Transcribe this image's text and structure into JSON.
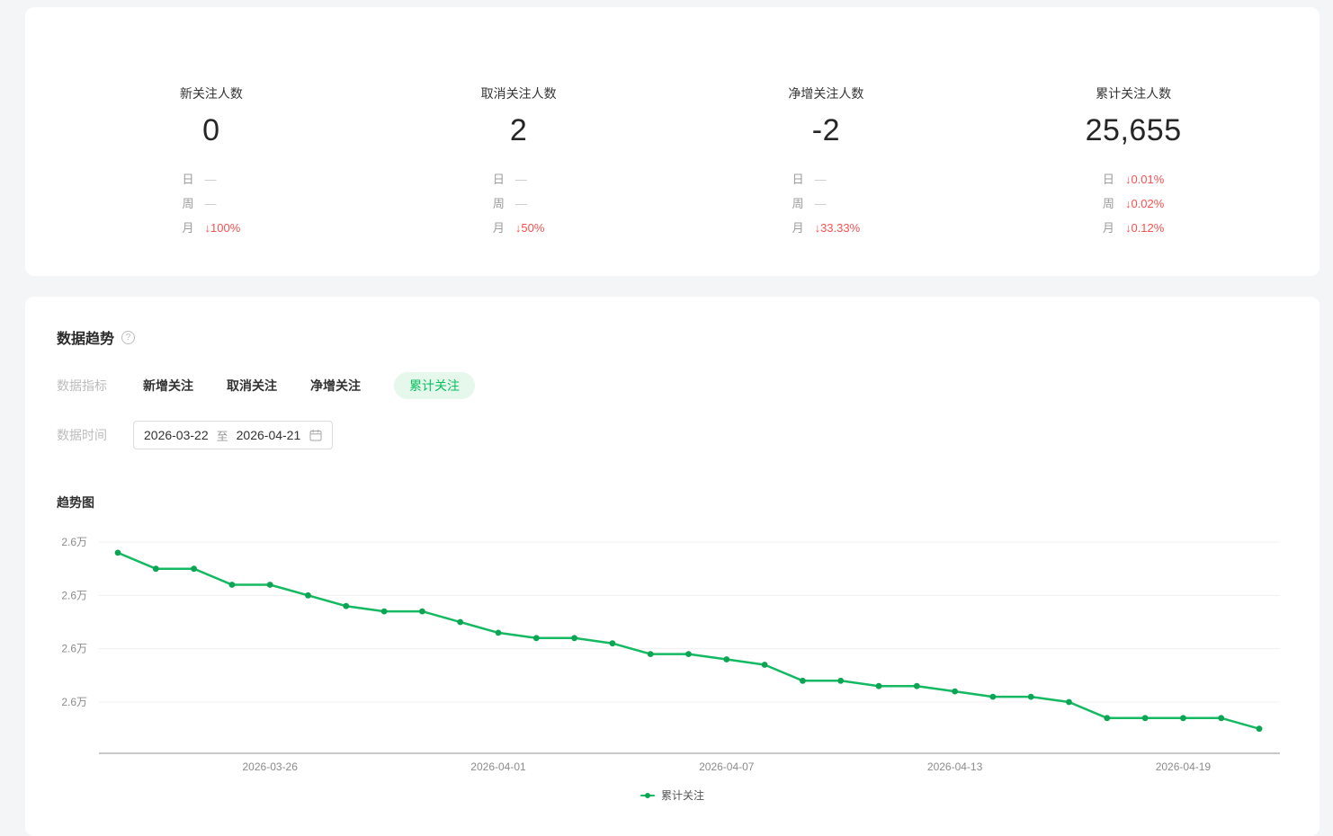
{
  "stats_card": {
    "items": [
      {
        "title": "新关注人数",
        "value": "0",
        "rows": [
          {
            "period": "日",
            "value": "—",
            "type": "neutral"
          },
          {
            "period": "周",
            "value": "—",
            "type": "neutral"
          },
          {
            "period": "月",
            "value": "↓100%",
            "type": "down"
          }
        ]
      },
      {
        "title": "取消关注人数",
        "value": "2",
        "rows": [
          {
            "period": "日",
            "value": "—",
            "type": "neutral"
          },
          {
            "period": "周",
            "value": "—",
            "type": "neutral"
          },
          {
            "period": "月",
            "value": "↓50%",
            "type": "down"
          }
        ]
      },
      {
        "title": "净增关注人数",
        "value": "-2",
        "rows": [
          {
            "period": "日",
            "value": "—",
            "type": "neutral"
          },
          {
            "period": "周",
            "value": "—",
            "type": "neutral"
          },
          {
            "period": "月",
            "value": "↓33.33%",
            "type": "down"
          }
        ]
      },
      {
        "title": "累计关注人数",
        "value": "25,655",
        "rows": [
          {
            "period": "日",
            "value": "↓0.01%",
            "type": "down"
          },
          {
            "period": "周",
            "value": "↓0.02%",
            "type": "down"
          },
          {
            "period": "月",
            "value": "↓0.12%",
            "type": "down"
          }
        ]
      }
    ]
  },
  "trend_section": {
    "title": "数据趋势",
    "help_icon": "?",
    "metric_label": "数据指标",
    "tabs": [
      {
        "label": "新增关注",
        "active": false
      },
      {
        "label": "取消关注",
        "active": false
      },
      {
        "label": "净增关注",
        "active": false
      },
      {
        "label": "累计关注",
        "active": true
      }
    ],
    "time_label": "数据时间",
    "date_range": {
      "start": "2026-03-22",
      "separator": "至",
      "end": "2026-04-21"
    },
    "chart_title": "趋势图"
  },
  "chart_data": {
    "type": "line",
    "title": "趋势图",
    "legend": {
      "label": "累计关注",
      "position": "bottom"
    },
    "grid": true,
    "x": [
      "2026-03-22",
      "2026-03-23",
      "2026-03-24",
      "2026-03-25",
      "2026-03-26",
      "2026-03-27",
      "2026-03-28",
      "2026-03-29",
      "2026-03-30",
      "2026-03-31",
      "2026-04-01",
      "2026-04-02",
      "2026-04-03",
      "2026-04-04",
      "2026-04-05",
      "2026-04-06",
      "2026-04-07",
      "2026-04-08",
      "2026-04-09",
      "2026-04-10",
      "2026-04-11",
      "2026-04-12",
      "2026-04-13",
      "2026-04-14",
      "2026-04-15",
      "2026-04-16",
      "2026-04-17",
      "2026-04-18",
      "2026-04-19",
      "2026-04-20",
      "2026-04-21"
    ],
    "series": [
      {
        "name": "累计关注",
        "values": [
          25688,
          25685,
          25685,
          25682,
          25682,
          25680,
          25678,
          25677,
          25677,
          25675,
          25673,
          25672,
          25672,
          25671,
          25669,
          25669,
          25668,
          25667,
          25664,
          25664,
          25663,
          25663,
          25662,
          25661,
          25661,
          25660,
          25657,
          25657,
          25657,
          25657,
          25655
        ]
      }
    ],
    "x_tick_labels": [
      "2026-03-26",
      "2026-04-01",
      "2026-04-07",
      "2026-04-13",
      "2026-04-19"
    ],
    "x_tick_indices": [
      4,
      10,
      16,
      22,
      28
    ],
    "y_gridline_values": [
      25690,
      25680,
      25670,
      25660
    ],
    "y_tick_label": "2.6万",
    "ylim": [
      25645,
      25690
    ],
    "colors": {
      "line": "#14b962",
      "dot": "#0ca554",
      "grid": "#f0f0f0",
      "axis": "#c9c9c9",
      "tick_text": "#8c8c8c"
    }
  },
  "colors": {
    "accent_green": "#07c160",
    "pill_background": "#e6f7ec",
    "down_red": "#fa5151",
    "page_background": "#f4f5f7"
  }
}
